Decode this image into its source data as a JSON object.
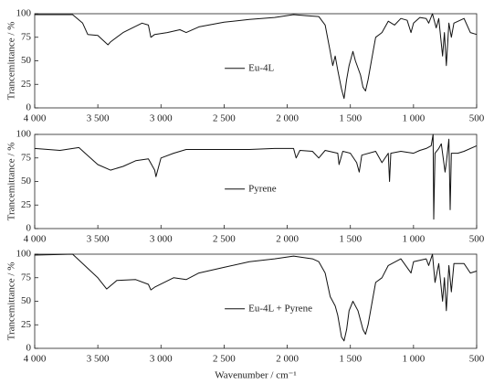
{
  "chart_data": [
    {
      "type": "line",
      "y_label": "Trancemittance / %",
      "legend": "center",
      "xlim": [
        4000,
        500
      ],
      "ylim": [
        0,
        100
      ],
      "xticks": [
        {
          "value": 4000,
          "label": "4 000"
        },
        {
          "value": 3500,
          "label": "3 500"
        },
        {
          "value": 3000,
          "label": "3 000"
        },
        {
          "value": 2500,
          "label": "2 500"
        },
        {
          "value": 2000,
          "label": "2 000"
        },
        {
          "value": 1500,
          "label": "1 500"
        },
        {
          "value": 1000,
          "label": "1 000"
        },
        500
      ],
      "yticks": [
        0,
        25,
        50,
        75,
        100
      ],
      "x": [
        4000,
        3700,
        3620,
        3580,
        3500,
        3420,
        3400,
        3300,
        3150,
        3100,
        3080,
        3050,
        2950,
        2850,
        2800,
        2700,
        2500,
        2300,
        2100,
        1950,
        1850,
        1750,
        1700,
        1660,
        1640,
        1620,
        1600,
        1570,
        1550,
        1530,
        1510,
        1480,
        1460,
        1420,
        1400,
        1380,
        1360,
        1320,
        1300,
        1250,
        1200,
        1150,
        1100,
        1050,
        1020,
        1000,
        950,
        900,
        880,
        850,
        820,
        800,
        770,
        755,
        740,
        720,
        700,
        680,
        600,
        550,
        500
      ],
      "series": [
        {
          "name": "Eu-4L",
          "color": "#111111",
          "values": [
            99,
            99,
            90,
            78,
            77,
            67,
            70,
            80,
            90,
            88,
            75,
            78,
            80,
            83,
            80,
            86,
            91,
            94,
            96,
            99,
            98,
            97,
            88,
            60,
            45,
            55,
            40,
            20,
            10,
            30,
            45,
            60,
            50,
            35,
            22,
            18,
            30,
            60,
            75,
            80,
            92,
            88,
            95,
            93,
            80,
            90,
            96,
            95,
            90,
            100,
            85,
            95,
            55,
            80,
            45,
            90,
            75,
            90,
            95,
            80,
            78
          ]
        }
      ]
    },
    {
      "type": "line",
      "y_label": "Trancemittance / %",
      "legend": "center",
      "xlim": [
        4000,
        500
      ],
      "ylim": [
        0,
        100
      ],
      "xticks": [
        {
          "value": 4000,
          "label": "4 000"
        },
        {
          "value": 3500,
          "label": "3 500"
        },
        {
          "value": 3000,
          "label": "3 000"
        },
        {
          "value": 2500,
          "label": "2 500"
        },
        {
          "value": 2000,
          "label": "2 000"
        },
        {
          "value": 1500,
          "label": "1 500"
        },
        {
          "value": 1000,
          "label": "1 000"
        },
        500
      ],
      "yticks": [
        0,
        25,
        50,
        75,
        100
      ],
      "x": [
        4000,
        3800,
        3650,
        3600,
        3500,
        3400,
        3300,
        3200,
        3100,
        3050,
        3040,
        3020,
        3000,
        2900,
        2800,
        2500,
        2300,
        2100,
        1950,
        1930,
        1900,
        1800,
        1750,
        1700,
        1600,
        1590,
        1560,
        1500,
        1450,
        1430,
        1410,
        1300,
        1250,
        1200,
        1190,
        1180,
        1100,
        1000,
        950,
        900,
        860,
        845,
        840,
        830,
        800,
        780,
        750,
        740,
        720,
        710,
        700,
        650,
        600,
        500
      ],
      "series": [
        {
          "name": "Pyrene",
          "color": "#111111",
          "values": [
            85,
            83,
            86,
            80,
            68,
            62,
            66,
            72,
            74,
            62,
            55,
            65,
            75,
            80,
            84,
            84,
            84,
            85,
            85,
            75,
            83,
            82,
            75,
            83,
            80,
            68,
            82,
            80,
            70,
            60,
            78,
            82,
            70,
            80,
            50,
            80,
            82,
            80,
            83,
            85,
            88,
            100,
            10,
            80,
            85,
            90,
            60,
            70,
            95,
            20,
            80,
            80,
            82,
            88
          ]
        }
      ]
    },
    {
      "type": "line",
      "y_label": "Trancemittance / %",
      "x_label": "Wavenumber / cm⁻¹",
      "legend": "center",
      "xlim": [
        4000,
        500
      ],
      "ylim": [
        0,
        100
      ],
      "xticks": [
        {
          "value": 4000,
          "label": "4 000"
        },
        {
          "value": 3500,
          "label": "3 500"
        },
        {
          "value": 3000,
          "label": "3 000"
        },
        {
          "value": 2500,
          "label": "2 500"
        },
        {
          "value": 2000,
          "label": "2 000"
        },
        {
          "value": 1500,
          "label": "1 500"
        },
        {
          "value": 1000,
          "label": "1 000"
        },
        500
      ],
      "yticks": [
        0,
        25,
        50,
        75,
        100
      ],
      "x": [
        4000,
        3700,
        3620,
        3500,
        3430,
        3350,
        3200,
        3100,
        3080,
        3050,
        2900,
        2800,
        2700,
        2500,
        2300,
        2100,
        1950,
        1800,
        1750,
        1700,
        1660,
        1620,
        1600,
        1570,
        1550,
        1530,
        1510,
        1480,
        1440,
        1400,
        1380,
        1360,
        1320,
        1300,
        1250,
        1200,
        1100,
        1020,
        1000,
        900,
        880,
        850,
        830,
        800,
        770,
        755,
        740,
        720,
        700,
        680,
        600,
        550,
        500
      ],
      "series": [
        {
          "name": "Eu-4L + Pyrene",
          "color": "#111111",
          "values": [
            99,
            100,
            90,
            75,
            63,
            72,
            73,
            68,
            62,
            65,
            75,
            73,
            80,
            86,
            92,
            95,
            98,
            95,
            92,
            80,
            55,
            45,
            35,
            12,
            8,
            20,
            40,
            50,
            40,
            20,
            15,
            25,
            55,
            70,
            75,
            88,
            95,
            80,
            92,
            95,
            88,
            100,
            70,
            90,
            50,
            75,
            40,
            88,
            60,
            90,
            90,
            80,
            82
          ]
        }
      ]
    }
  ]
}
